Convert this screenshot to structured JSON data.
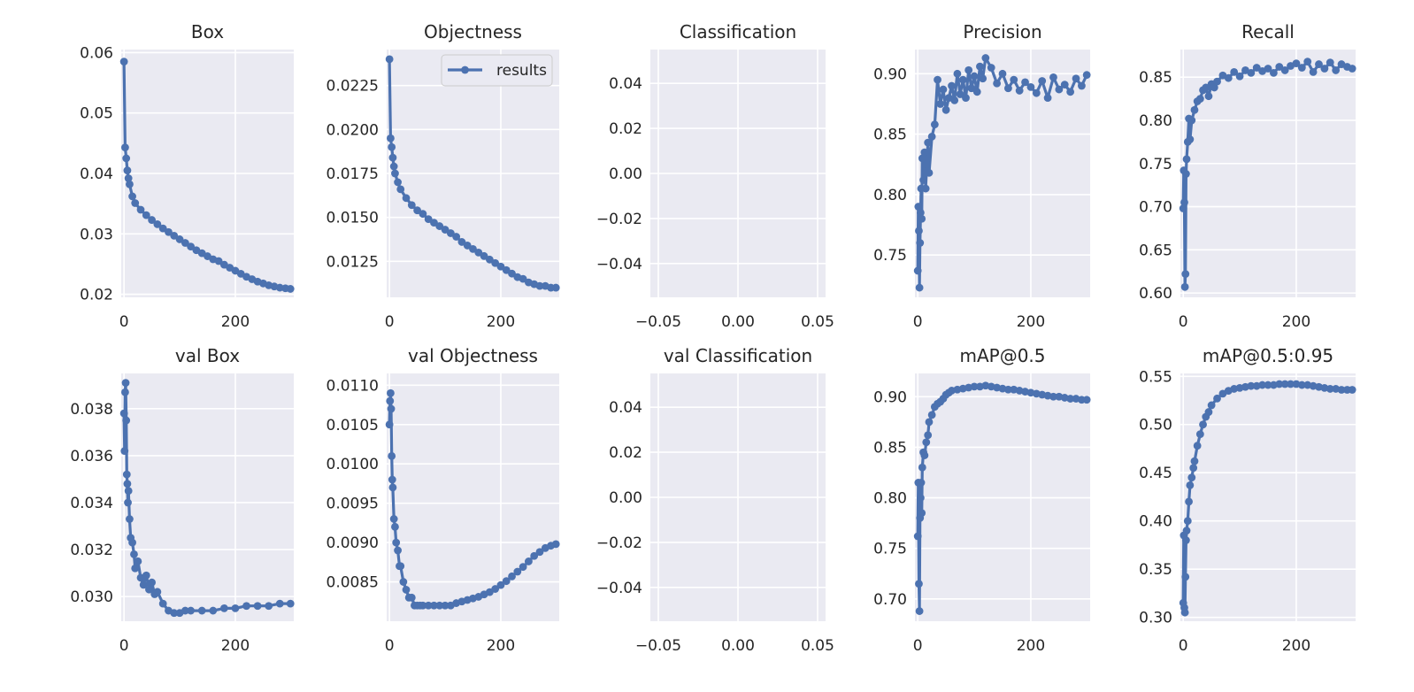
{
  "figure": {
    "type": "training-results-grid"
  },
  "colors": {
    "panel_bg": "#EAEAF2",
    "grid": "#FFFFFF",
    "series": "#4C72B0",
    "text": "#262626"
  },
  "legend": {
    "label": "results",
    "placement": "upper-right",
    "panel": "Objectness"
  },
  "chart_data": [
    {
      "type": "line",
      "title": "Box",
      "xlim": [
        -5,
        305
      ],
      "ylim": [
        0.0195,
        0.0605
      ],
      "xticks": [
        0,
        200
      ],
      "xtick_labels": [
        "0",
        "200"
      ],
      "yticks": [
        0.02,
        0.03,
        0.04,
        0.05,
        0.06
      ],
      "ytick_labels": [
        "0.02",
        "0.03",
        "0.04",
        "0.05",
        "0.06"
      ],
      "series": [
        {
          "name": "results",
          "x": [
            0,
            2,
            4,
            6,
            8,
            10,
            15,
            20,
            30,
            40,
            50,
            60,
            70,
            80,
            90,
            100,
            110,
            120,
            130,
            140,
            150,
            160,
            170,
            180,
            190,
            200,
            210,
            220,
            230,
            240,
            250,
            260,
            270,
            280,
            290,
            299
          ],
          "y": [
            0.0585,
            0.0443,
            0.0425,
            0.0405,
            0.0392,
            0.0382,
            0.0362,
            0.0351,
            0.034,
            0.0331,
            0.0323,
            0.0316,
            0.0309,
            0.0303,
            0.0297,
            0.0291,
            0.0285,
            0.0279,
            0.0273,
            0.0268,
            0.0263,
            0.0258,
            0.0255,
            0.0249,
            0.0244,
            0.0239,
            0.0234,
            0.0229,
            0.0225,
            0.0221,
            0.0218,
            0.0215,
            0.0213,
            0.0211,
            0.021,
            0.0209
          ]
        }
      ]
    },
    {
      "type": "line",
      "title": "Objectness",
      "xlim": [
        -5,
        305
      ],
      "ylim": [
        0.01045,
        0.02455
      ],
      "xticks": [
        0,
        200
      ],
      "xtick_labels": [
        "0",
        "200"
      ],
      "yticks": [
        0.0125,
        0.015,
        0.0175,
        0.02,
        0.0225
      ],
      "ytick_labels": [
        "0.0125",
        "0.0150",
        "0.0175",
        "0.0200",
        "0.0225"
      ],
      "series": [
        {
          "name": "results",
          "x": [
            0,
            2,
            4,
            6,
            8,
            10,
            15,
            20,
            30,
            40,
            50,
            60,
            70,
            80,
            90,
            100,
            110,
            120,
            130,
            140,
            150,
            160,
            170,
            180,
            190,
            200,
            210,
            220,
            230,
            240,
            250,
            260,
            270,
            280,
            290,
            299
          ],
          "y": [
            0.024,
            0.0195,
            0.019,
            0.0184,
            0.0179,
            0.0175,
            0.017,
            0.0166,
            0.0161,
            0.0157,
            0.0154,
            0.0152,
            0.0149,
            0.0147,
            0.0145,
            0.0143,
            0.0141,
            0.0139,
            0.0136,
            0.0134,
            0.0132,
            0.013,
            0.0128,
            0.0126,
            0.0124,
            0.0122,
            0.012,
            0.0118,
            0.0116,
            0.0115,
            0.0113,
            0.0112,
            0.0111,
            0.0111,
            0.011,
            0.011
          ]
        }
      ]
    },
    {
      "type": "line",
      "title": "Classification",
      "xlim": [
        -0.055,
        0.055
      ],
      "ylim": [
        -0.055,
        0.055
      ],
      "xticks": [
        -0.05,
        0,
        0.05
      ],
      "xtick_labels": [
        "−0.05",
        "0.00",
        "0.05"
      ],
      "yticks": [
        -0.04,
        -0.02,
        0,
        0.02,
        0.04
      ],
      "ytick_labels": [
        "−0.04",
        "−0.02",
        "0.00",
        "0.02",
        "0.04"
      ],
      "series": []
    },
    {
      "type": "line",
      "title": "Precision",
      "xlim": [
        -5,
        305
      ],
      "ylim": [
        0.715,
        0.92
      ],
      "xticks": [
        0,
        200
      ],
      "xtick_labels": [
        "0",
        "200"
      ],
      "yticks": [
        0.75,
        0.8,
        0.85,
        0.9
      ],
      "ytick_labels": [
        "0.75",
        "0.80",
        "0.85",
        "0.90"
      ],
      "series": [
        {
          "name": "results",
          "x": [
            0,
            1,
            2,
            3,
            4,
            5,
            6,
            7,
            8,
            10,
            12,
            14,
            16,
            18,
            20,
            25,
            30,
            35,
            40,
            45,
            50,
            55,
            60,
            65,
            70,
            75,
            80,
            85,
            90,
            95,
            100,
            105,
            110,
            115,
            120,
            130,
            140,
            150,
            160,
            170,
            180,
            190,
            200,
            210,
            220,
            230,
            240,
            250,
            260,
            270,
            280,
            290,
            299
          ],
          "y": [
            0.737,
            0.79,
            0.77,
            0.723,
            0.76,
            0.785,
            0.805,
            0.78,
            0.83,
            0.812,
            0.835,
            0.805,
            0.825,
            0.843,
            0.818,
            0.848,
            0.858,
            0.895,
            0.875,
            0.887,
            0.87,
            0.88,
            0.89,
            0.878,
            0.9,
            0.883,
            0.895,
            0.88,
            0.903,
            0.888,
            0.898,
            0.885,
            0.906,
            0.896,
            0.913,
            0.905,
            0.892,
            0.9,
            0.888,
            0.895,
            0.886,
            0.893,
            0.889,
            0.884,
            0.894,
            0.88,
            0.897,
            0.887,
            0.891,
            0.885,
            0.896,
            0.89,
            0.899
          ]
        }
      ]
    },
    {
      "type": "line",
      "title": "Recall",
      "xlim": [
        -5,
        305
      ],
      "ylim": [
        0.595,
        0.882
      ],
      "xticks": [
        0,
        200
      ],
      "xtick_labels": [
        "0",
        "200"
      ],
      "yticks": [
        0.6,
        0.65,
        0.7,
        0.75,
        0.8,
        0.85
      ],
      "ytick_labels": [
        "0.60",
        "0.65",
        "0.70",
        "0.75",
        "0.80",
        "0.85"
      ],
      "series": [
        {
          "name": "results",
          "x": [
            0,
            1,
            2,
            3,
            4,
            5,
            6,
            8,
            10,
            12,
            15,
            20,
            25,
            30,
            35,
            40,
            45,
            50,
            55,
            60,
            70,
            80,
            90,
            100,
            110,
            120,
            130,
            140,
            150,
            160,
            170,
            180,
            190,
            200,
            210,
            220,
            230,
            240,
            250,
            260,
            270,
            280,
            290,
            299
          ],
          "y": [
            0.698,
            0.742,
            0.705,
            0.607,
            0.622,
            0.738,
            0.755,
            0.775,
            0.802,
            0.778,
            0.8,
            0.812,
            0.822,
            0.825,
            0.835,
            0.838,
            0.828,
            0.842,
            0.838,
            0.845,
            0.852,
            0.849,
            0.856,
            0.851,
            0.858,
            0.855,
            0.861,
            0.857,
            0.86,
            0.855,
            0.862,
            0.858,
            0.863,
            0.866,
            0.861,
            0.868,
            0.856,
            0.865,
            0.86,
            0.867,
            0.858,
            0.865,
            0.862,
            0.86
          ]
        }
      ]
    },
    {
      "type": "line",
      "title": "val Box",
      "xlim": [
        -5,
        305
      ],
      "ylim": [
        0.02895,
        0.0395
      ],
      "xticks": [
        0,
        200
      ],
      "xtick_labels": [
        "0",
        "200"
      ],
      "yticks": [
        0.03,
        0.032,
        0.034,
        0.036,
        0.038
      ],
      "ytick_labels": [
        "0.030",
        "0.032",
        "0.034",
        "0.036",
        "0.038"
      ],
      "series": [
        {
          "name": "results",
          "x": [
            0,
            1,
            2,
            3,
            4,
            5,
            6,
            7,
            8,
            10,
            12,
            15,
            18,
            20,
            25,
            30,
            35,
            40,
            45,
            50,
            55,
            60,
            70,
            80,
            90,
            100,
            110,
            120,
            140,
            160,
            180,
            200,
            220,
            240,
            260,
            280,
            299
          ],
          "y": [
            0.0378,
            0.0362,
            0.0387,
            0.0391,
            0.0375,
            0.0352,
            0.0348,
            0.034,
            0.0345,
            0.0333,
            0.0325,
            0.0323,
            0.0318,
            0.0312,
            0.0315,
            0.0308,
            0.0305,
            0.0309,
            0.0303,
            0.0306,
            0.0301,
            0.0302,
            0.0297,
            0.0294,
            0.0293,
            0.0293,
            0.0294,
            0.0294,
            0.0294,
            0.0294,
            0.0295,
            0.0295,
            0.0296,
            0.0296,
            0.0296,
            0.0297,
            0.0297
          ]
        }
      ]
    },
    {
      "type": "line",
      "title": "val Objectness",
      "xlim": [
        -5,
        305
      ],
      "ylim": [
        0.008,
        0.01115
      ],
      "xticks": [
        0,
        200
      ],
      "xtick_labels": [
        "0",
        "200"
      ],
      "yticks": [
        0.0085,
        0.009,
        0.0095,
        0.01,
        0.0105,
        0.011
      ],
      "ytick_labels": [
        "0.0085",
        "0.0090",
        "0.0095",
        "0.0100",
        "0.0105",
        "0.0110"
      ],
      "series": [
        {
          "name": "results",
          "x": [
            0,
            1,
            2,
            3,
            4,
            5,
            6,
            8,
            10,
            12,
            15,
            18,
            20,
            25,
            30,
            35,
            40,
            45,
            50,
            55,
            60,
            70,
            80,
            90,
            100,
            110,
            120,
            130,
            140,
            150,
            160,
            170,
            180,
            190,
            200,
            210,
            220,
            230,
            240,
            250,
            260,
            270,
            280,
            290,
            299
          ],
          "y": [
            0.0105,
            0.0108,
            0.0109,
            0.0107,
            0.0101,
            0.0098,
            0.0097,
            0.0093,
            0.0092,
            0.009,
            0.0089,
            0.0087,
            0.0087,
            0.0085,
            0.0084,
            0.0083,
            0.0083,
            0.0082,
            0.0082,
            0.0082,
            0.0082,
            0.0082,
            0.0082,
            0.0082,
            0.0082,
            0.0082,
            0.00823,
            0.00825,
            0.00827,
            0.00829,
            0.00831,
            0.00834,
            0.00837,
            0.00841,
            0.00846,
            0.00851,
            0.00857,
            0.00863,
            0.00869,
            0.00876,
            0.00883,
            0.00888,
            0.00893,
            0.00896,
            0.00898
          ]
        }
      ]
    },
    {
      "type": "line",
      "title": "val Classification",
      "xlim": [
        -0.055,
        0.055
      ],
      "ylim": [
        -0.055,
        0.055
      ],
      "xticks": [
        -0.05,
        0,
        0.05
      ],
      "xtick_labels": [
        "−0.05",
        "0.00",
        "0.05"
      ],
      "yticks": [
        -0.04,
        -0.02,
        0,
        0.02,
        0.04
      ],
      "ytick_labels": [
        "−0.04",
        "−0.02",
        "0.00",
        "0.02",
        "0.04"
      ],
      "series": []
    },
    {
      "type": "line",
      "title": "mAP@0.5",
      "xlim": [
        -5,
        305
      ],
      "ylim": [
        0.678,
        0.923
      ],
      "xticks": [
        0,
        200
      ],
      "xtick_labels": [
        "0",
        "200"
      ],
      "yticks": [
        0.7,
        0.75,
        0.8,
        0.85,
        0.9
      ],
      "ytick_labels": [
        "0.70",
        "0.75",
        "0.80",
        "0.85",
        "0.90"
      ],
      "series": [
        {
          "name": "results",
          "x": [
            0,
            1,
            2,
            3,
            4,
            5,
            6,
            7,
            8,
            10,
            12,
            15,
            18,
            20,
            25,
            30,
            35,
            40,
            45,
            50,
            55,
            60,
            70,
            80,
            90,
            100,
            110,
            120,
            130,
            140,
            150,
            160,
            170,
            180,
            190,
            200,
            210,
            220,
            230,
            240,
            250,
            260,
            270,
            280,
            290,
            299
          ],
          "y": [
            0.762,
            0.815,
            0.715,
            0.688,
            0.78,
            0.8,
            0.815,
            0.785,
            0.83,
            0.845,
            0.842,
            0.855,
            0.862,
            0.875,
            0.882,
            0.89,
            0.893,
            0.895,
            0.898,
            0.902,
            0.904,
            0.906,
            0.907,
            0.908,
            0.909,
            0.91,
            0.91,
            0.911,
            0.91,
            0.909,
            0.908,
            0.907,
            0.907,
            0.906,
            0.905,
            0.904,
            0.903,
            0.902,
            0.901,
            0.9,
            0.9,
            0.899,
            0.898,
            0.898,
            0.897,
            0.897
          ]
        }
      ]
    },
    {
      "type": "line",
      "title": "mAP@0.5:0.95",
      "xlim": [
        -5,
        305
      ],
      "ylim": [
        0.296,
        0.553
      ],
      "xticks": [
        0,
        200
      ],
      "xtick_labels": [
        "0",
        "200"
      ],
      "yticks": [
        0.3,
        0.35,
        0.4,
        0.45,
        0.5,
        0.55
      ],
      "ytick_labels": [
        "0.30",
        "0.35",
        "0.40",
        "0.45",
        "0.50",
        "0.55"
      ],
      "series": [
        {
          "name": "results",
          "x": [
            0,
            1,
            2,
            3,
            4,
            5,
            6,
            8,
            10,
            12,
            15,
            18,
            20,
            25,
            30,
            35,
            40,
            45,
            50,
            60,
            70,
            80,
            90,
            100,
            110,
            120,
            130,
            140,
            150,
            160,
            170,
            180,
            190,
            200,
            210,
            220,
            230,
            240,
            250,
            260,
            270,
            280,
            290,
            299
          ],
          "y": [
            0.315,
            0.385,
            0.31,
            0.305,
            0.342,
            0.38,
            0.39,
            0.4,
            0.42,
            0.437,
            0.445,
            0.455,
            0.462,
            0.478,
            0.49,
            0.5,
            0.508,
            0.513,
            0.52,
            0.527,
            0.532,
            0.535,
            0.537,
            0.538,
            0.539,
            0.54,
            0.54,
            0.541,
            0.541,
            0.541,
            0.542,
            0.542,
            0.542,
            0.542,
            0.541,
            0.541,
            0.54,
            0.539,
            0.538,
            0.537,
            0.537,
            0.536,
            0.536,
            0.536
          ]
        }
      ]
    }
  ]
}
